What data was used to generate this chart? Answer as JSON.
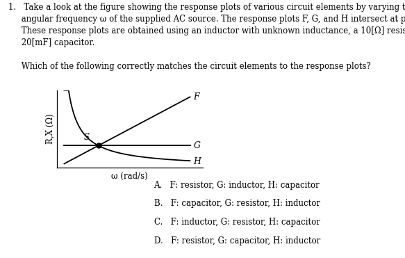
{
  "line1": "1.   Take a look at the figure showing the response plots of various circuit elements by varying the",
  "line2": "     angular frequency ω of the supplied AC source. The response plots F, G, and H intersect at point S.",
  "line3": "     These response plots are obtained using an inductor with unknown inductance, a 10[Ω] resistor, and a",
  "line4": "     20[mF] capacitor.",
  "line5": "",
  "line6": "     Which of the following correctly matches the circuit elements to the response plots?",
  "ylabel": "R,X (Ω)",
  "xlabel": "ω (rad/s)",
  "curve_F_label": "F",
  "curve_G_label": "G",
  "curve_H_label": "H",
  "point_S_label": "S",
  "options": [
    "A.   F: resistor, G: inductor, H: capacitor",
    "B.   F: capacitor, G: resistor, H: inductor",
    "C.   F: inductor, G: resistor, H: capacitor",
    "D.   F: resistor, G: capacitor, H: inductor"
  ],
  "background_color": "#ffffff",
  "line_color": "#000000",
  "text_color": "#000000",
  "font_size_body": 8.5,
  "font_size_labels": 8.5,
  "font_size_curve": 9
}
